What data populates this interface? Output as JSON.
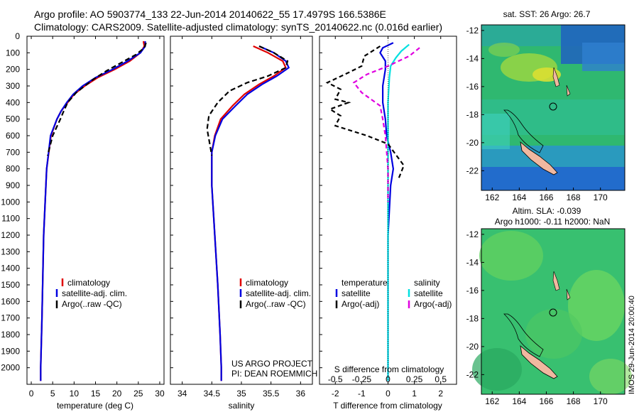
{
  "title_line1": "Argo profile: AO 5903774_133 22-Jun-2014 20140622_55 17.4979S 166.5386E",
  "title_line2": "Climatology: CARS2009. Satellite-adjusted climatology: synTS_20140622.nc (0.016d earlier)",
  "chart_data": [
    {
      "type": "line",
      "panel": "temperature",
      "xlabel": "temperature (deg C)",
      "xlim": [
        -1,
        31
      ],
      "xticks": [
        0,
        5,
        10,
        15,
        20,
        25,
        30
      ],
      "ylim": [
        0,
        2100
      ],
      "yticks": [
        0,
        100,
        200,
        300,
        400,
        500,
        600,
        700,
        800,
        900,
        1000,
        1100,
        1200,
        1300,
        1400,
        1500,
        1600,
        1700,
        1800,
        1900,
        2000
      ],
      "legend": [
        "climatology",
        "satellite-adj. clim.",
        "Argo(..raw -QC)"
      ],
      "series": [
        {
          "name": "climatology",
          "color": "#e00000",
          "dash": "",
          "x": [
            26.2,
            26.4,
            25.5,
            23.0,
            19.5,
            15.5,
            12.5,
            10.0,
            8.5,
            7.0,
            6.0,
            4.6,
            3.6,
            2.9,
            2.5,
            2.2
          ],
          "y": [
            30,
            60,
            100,
            150,
            200,
            250,
            300,
            350,
            400,
            450,
            500,
            600,
            800,
            1200,
            1700,
            2000
          ],
          "y_end": 2080,
          "x_end": 2.2
        },
        {
          "name": "satellite-adj. clim.",
          "color": "#0000e0",
          "dash": "",
          "x": [
            26.6,
            26.6,
            25.5,
            22.5,
            19.0,
            15.0,
            12.0,
            9.8,
            8.3,
            7.0,
            6.0,
            4.5,
            3.6,
            2.9,
            2.5,
            2.2
          ],
          "y": [
            30,
            60,
            100,
            150,
            200,
            250,
            300,
            350,
            400,
            450,
            500,
            600,
            800,
            1200,
            1700,
            2000
          ],
          "y_end": 2080,
          "x_end": 2.2
        },
        {
          "name": "Argo(..raw -QC)",
          "color": "#000000",
          "dash": "7,4",
          "x": [
            26.8,
            26.4,
            24.5,
            21.0,
            17.5,
            14.5,
            12.5,
            10.5,
            8.5,
            7.6,
            6.8,
            5.0,
            3.8
          ],
          "y": [
            40,
            70,
            110,
            160,
            210,
            260,
            300,
            340,
            400,
            450,
            500,
            600,
            720
          ],
          "y_end": null,
          "x_end": null
        }
      ]
    },
    {
      "type": "line",
      "panel": "salinity",
      "xlabel": "salinity",
      "xlim": [
        33.8,
        36.2
      ],
      "xticks": [
        34,
        34.5,
        35,
        35.5,
        36
      ],
      "ylim": [
        0,
        2100
      ],
      "legend": [
        "climatology",
        "satellite-adj. clim.",
        "Argo(..raw -QC)"
      ],
      "annotation_line1": "US ARGO PROJECT",
      "annotation_line2": "PI: DEAN ROEMMICH",
      "series": [
        {
          "name": "climatology",
          "color": "#e00000",
          "dash": "",
          "x": [
            35.2,
            35.45,
            35.7,
            35.75,
            35.55,
            35.3,
            35.05,
            34.85,
            34.65,
            34.55,
            34.5,
            34.5,
            34.55,
            34.6,
            34.64,
            34.66
          ],
          "y": [
            60,
            100,
            150,
            190,
            240,
            290,
            350,
            420,
            500,
            600,
            700,
            900,
            1200,
            1500,
            1800,
            2000
          ],
          "y_end": 2080,
          "x_end": 34.66
        },
        {
          "name": "satellite-adj. clim.",
          "color": "#0000e0",
          "dash": "",
          "x": [
            35.3,
            35.55,
            35.75,
            35.8,
            35.6,
            35.35,
            35.1,
            34.9,
            34.68,
            34.56,
            34.5,
            34.5,
            34.55,
            34.6,
            34.64,
            34.66
          ],
          "y": [
            60,
            100,
            150,
            190,
            240,
            290,
            350,
            420,
            500,
            600,
            700,
            900,
            1200,
            1500,
            1800,
            2000
          ],
          "y_end": 2080,
          "x_end": 34.66
        },
        {
          "name": "Argo(..raw -QC)",
          "color": "#000000",
          "dash": "7,4",
          "x": [
            35.3,
            35.55,
            35.78,
            35.75,
            35.45,
            35.1,
            34.8,
            34.6,
            34.45,
            34.42,
            34.45,
            34.48,
            34.5
          ],
          "y": [
            60,
            100,
            150,
            190,
            240,
            280,
            330,
            400,
            480,
            560,
            620,
            680,
            720
          ],
          "y_end": null,
          "x_end": null
        }
      ]
    },
    {
      "type": "line",
      "panel": "difference",
      "xlabel": "T difference from climatology",
      "xlabel_top": "S difference from climatology",
      "xlim": [
        -2.6,
        2.6
      ],
      "xticks": [
        -2,
        -1,
        0,
        1,
        2
      ],
      "xticks_s_labels": [
        "-0.5",
        "-0.25",
        "0",
        "0.25",
        "0.5"
      ],
      "xticks_s_pos": [
        -2,
        -1,
        0,
        1,
        2
      ],
      "ylim": [
        0,
        2100
      ],
      "legend_title_t": "temperature",
      "legend_title_s": "salinity",
      "legend_t": [
        "satellite",
        "Argo(-adj)"
      ],
      "legend_s": [
        "satellite",
        "Argo(-adj)"
      ],
      "series": [
        {
          "name": "T satellite",
          "color": "#0000e0",
          "dash": "",
          "x": [
            0.2,
            -0.2,
            -0.3,
            -0.1,
            -0.1,
            -0.2,
            -0.2,
            -0.1,
            -0.05,
            0.1,
            0.2,
            0.1,
            0.0,
            0.0
          ],
          "y": [
            40,
            70,
            100,
            150,
            200,
            300,
            400,
            500,
            600,
            700,
            800,
            900,
            1200,
            2080
          ]
        },
        {
          "name": "S satellite",
          "color": "#00e0e0",
          "dash": "",
          "x": [
            0.8,
            0.5,
            0.3,
            0.1,
            0.05,
            0.0,
            0.0,
            0.0,
            0.0,
            0.0,
            0.0
          ],
          "y": [
            50,
            90,
            130,
            180,
            250,
            400,
            600,
            800,
            1000,
            1500,
            2080
          ]
        },
        {
          "name": "T Argo(-adj)",
          "color": "#000000",
          "dash": "6,4",
          "x": [
            -0.3,
            -0.9,
            -1.0,
            -1.5,
            -2.3,
            -1.8,
            -2.0,
            -1.5,
            -2.2,
            -1.8,
            -2.0,
            -0.8,
            0.0,
            0.6,
            0.4
          ],
          "y": [
            60,
            120,
            180,
            220,
            280,
            320,
            380,
            400,
            440,
            480,
            540,
            600,
            650,
            780,
            860
          ]
        },
        {
          "name": "S Argo(-adj)",
          "color": "#e000e0",
          "dash": "6,4",
          "x": [
            1.2,
            0.8,
            0.0,
            -0.8,
            -1.3,
            -1.0,
            -0.3,
            -0.2,
            -0.1,
            0.0,
            0.0
          ],
          "y": [
            70,
            120,
            180,
            230,
            280,
            340,
            420,
            500,
            600,
            800,
            1000
          ]
        }
      ]
    },
    {
      "type": "heatmap",
      "panel": "sst_map",
      "title": "sat. SST: 26 Argo: 26.7",
      "xticks": [
        162,
        164,
        166,
        168,
        170
      ],
      "yticks": [
        -12,
        -14,
        -16,
        -18,
        -20,
        -22
      ]
    },
    {
      "type": "heatmap",
      "panel": "sla_map",
      "title_line1": "Altim. SLA: -0.039",
      "title_line2": "Argo h1000: -0.11 h2000: NaN",
      "xticks": [
        162,
        164,
        166,
        168,
        170
      ],
      "yticks": [
        -12,
        -14,
        -16,
        -18,
        -20,
        -22
      ],
      "side_label": "IMOS 29-Jun-2014 20:00:40"
    }
  ]
}
